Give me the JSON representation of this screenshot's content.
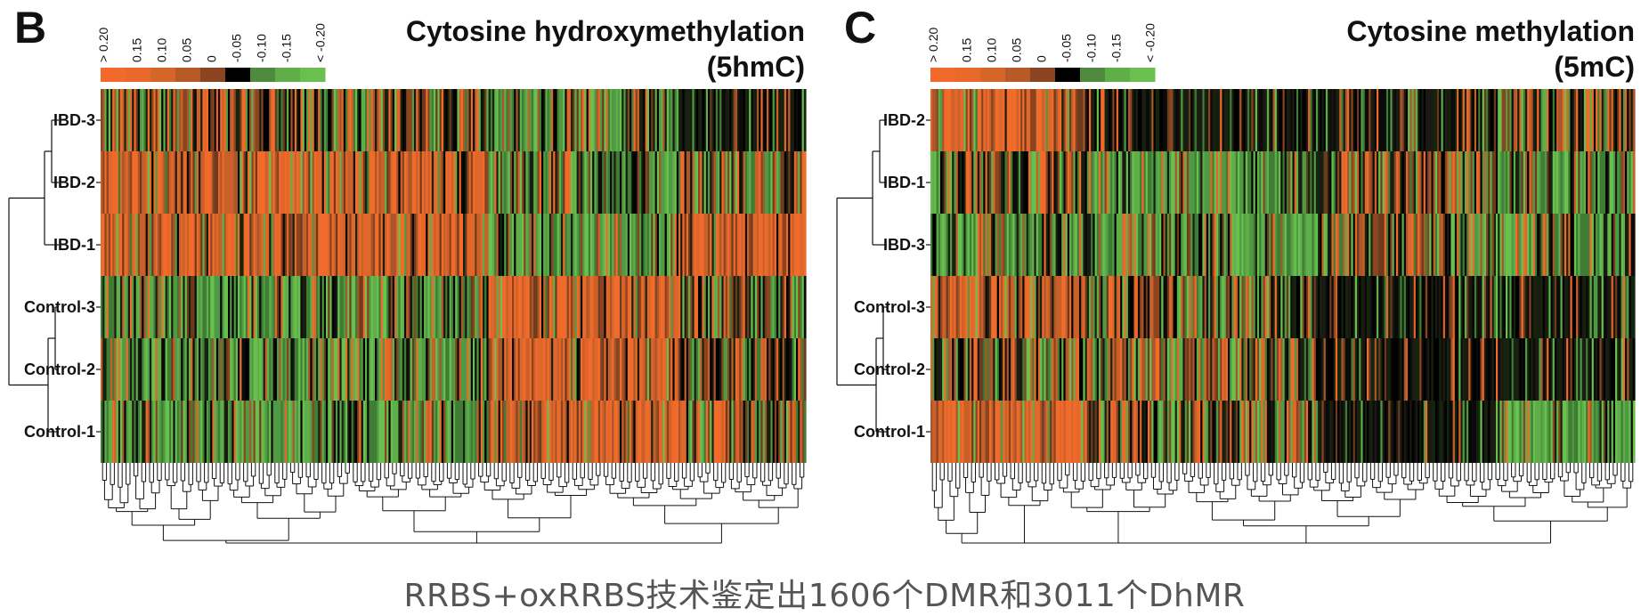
{
  "caption": "RRBS+oxRRBS技术鉴定出1606个DMR和3011个DhMR",
  "chart_data": [
    {
      "type": "heatmap",
      "panel": "B",
      "title_line1": "Cytosine hydroxymethylation",
      "title_line2": "(5hmC)",
      "rows": [
        "IBD-3",
        "IBD-2",
        "IBD-1",
        "Control-3",
        "Control-2",
        "Control-1"
      ],
      "color_scale": {
        "ticks": [
          "> 0.20",
          "0.15",
          "0.10",
          "0.05",
          "0",
          "-0.05",
          "-0.10",
          "-0.15",
          "< -0.20"
        ],
        "colors": [
          "#f26a2a",
          "#e8692a",
          "#d6652a",
          "#b85a27",
          "#8a4420",
          "#000000",
          "#4f8a3e",
          "#5fae4a",
          "#69c04f"
        ]
      },
      "column_blocks": [
        {
          "span": 0.55,
          "pattern": [
            "mix",
            "orange",
            "orange",
            "green",
            "green",
            "green"
          ]
        },
        {
          "span": 0.27,
          "pattern": [
            "green",
            "green",
            "green",
            "orange",
            "orange",
            "orange"
          ]
        },
        {
          "span": 0.18,
          "pattern": [
            "dark",
            "mix",
            "orange",
            "mix",
            "mix",
            "mix"
          ]
        }
      ],
      "n_columns": 360
    },
    {
      "type": "heatmap",
      "panel": "C",
      "title_line1": "Cytosine methylation",
      "title_line2": "(5mC)",
      "rows": [
        "IBD-2",
        "IBD-1",
        "IBD-3",
        "Control-3",
        "Control-2",
        "Control-1"
      ],
      "color_scale": {
        "ticks": [
          "> 0.20",
          "0.15",
          "0.10",
          "0.05",
          "0",
          "-0.05",
          "-0.10",
          "-0.15",
          "< -0.20"
        ],
        "colors": [
          "#f26a2a",
          "#e8692a",
          "#d6652a",
          "#b85a27",
          "#8a4420",
          "#000000",
          "#4f8a3e",
          "#5fae4a",
          "#69c04f"
        ]
      },
      "column_blocks": [
        {
          "span": 0.22,
          "pattern": [
            "orange",
            "mix",
            "green",
            "orange",
            "mix",
            "orange"
          ]
        },
        {
          "span": 0.33,
          "pattern": [
            "dark",
            "green",
            "green",
            "mix",
            "mix",
            "mix"
          ]
        },
        {
          "span": 0.25,
          "pattern": [
            "dark",
            "mix",
            "mix",
            "dark",
            "dark",
            "dark"
          ]
        },
        {
          "span": 0.2,
          "pattern": [
            "mix",
            "green",
            "green",
            "dark",
            "dark",
            "green"
          ]
        }
      ],
      "n_columns": 360
    }
  ]
}
